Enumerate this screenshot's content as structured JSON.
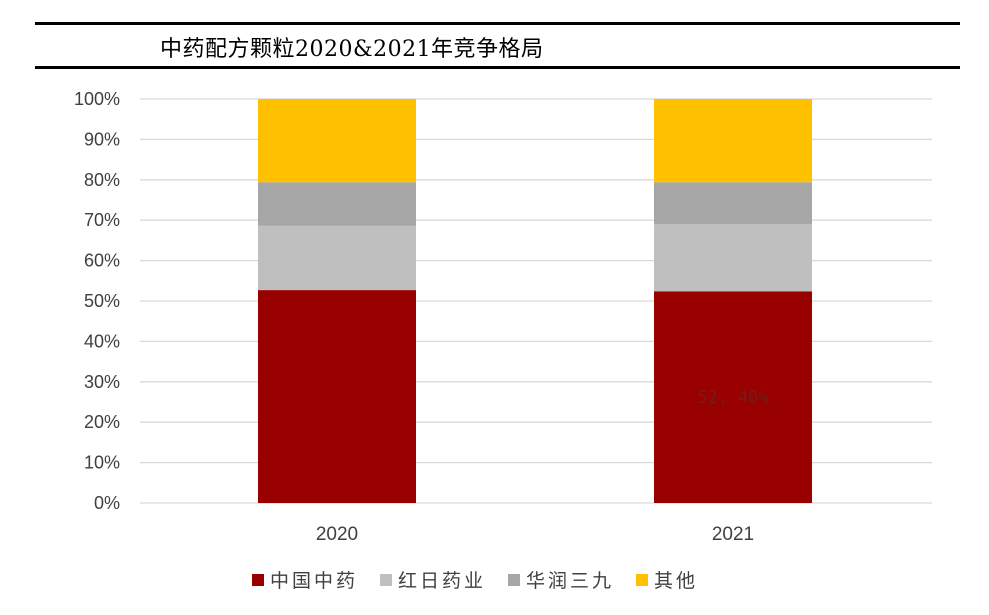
{
  "title": "中药配方颗粒2020&2021年竞争格局",
  "colors": {
    "中国中药": "#990000",
    "红日药业": "#bfbfbf",
    "华润三九": "#a6a6a6",
    "其他": "#ffc000",
    "grid": "#d9d9d9",
    "axis_text": "#404040"
  },
  "chart_data": {
    "type": "bar",
    "stacked": true,
    "categories": [
      "2020",
      "2021"
    ],
    "series": [
      {
        "name": "中国中药",
        "values": [
          52.7,
          52.4
        ]
      },
      {
        "name": "红日药业",
        "values": [
          15.9,
          16.6
        ]
      },
      {
        "name": "华润三九",
        "values": [
          10.8,
          10.4
        ]
      },
      {
        "name": "其他",
        "values": [
          20.6,
          20.6
        ]
      }
    ],
    "ylim": [
      0,
      100
    ],
    "yticks": [
      "0%",
      "10%",
      "20%",
      "30%",
      "40%",
      "50%",
      "60%",
      "70%",
      "80%",
      "90%",
      "100%"
    ],
    "data_labels": [
      {
        "category": "2021",
        "series": "中国中药",
        "text": "52. 40%"
      }
    ],
    "grid": true,
    "legend_position": "bottom"
  }
}
